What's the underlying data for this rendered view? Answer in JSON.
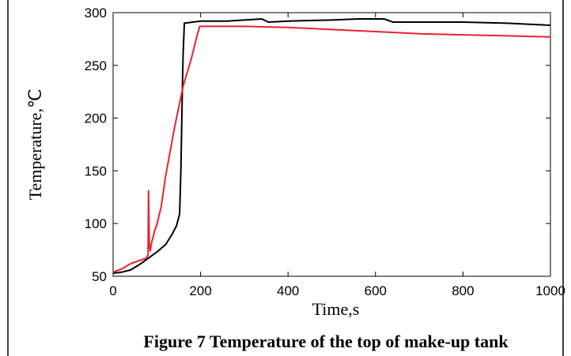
{
  "chart_data": {
    "type": "line",
    "xlabel": "Time,s",
    "ylabel": "Temperature,℃",
    "caption": "Figure 7 Temperature of the top of make-up tank",
    "xlim": [
      0,
      1000
    ],
    "ylim": [
      50,
      300
    ],
    "x_ticks": [
      0,
      200,
      400,
      600,
      800,
      1000
    ],
    "y_ticks": [
      50,
      100,
      150,
      200,
      250,
      300
    ],
    "x_tick_labels": [
      "0",
      "200",
      "400",
      "600",
      "800",
      "1000"
    ],
    "y_tick_labels": [
      "50",
      "100",
      "150",
      "200",
      "250",
      "300"
    ],
    "grid": false,
    "legend": "none",
    "series": [
      {
        "color": "#000000",
        "points": [
          [
            0,
            53
          ],
          [
            20,
            54
          ],
          [
            40,
            56
          ],
          [
            60,
            61
          ],
          [
            80,
            67
          ],
          [
            100,
            73
          ],
          [
            120,
            80
          ],
          [
            135,
            90
          ],
          [
            145,
            98
          ],
          [
            152,
            109
          ],
          [
            155,
            150
          ],
          [
            158,
            220
          ],
          [
            160,
            260
          ],
          [
            163,
            290
          ],
          [
            200,
            292
          ],
          [
            260,
            292
          ],
          [
            300,
            293
          ],
          [
            340,
            294
          ],
          [
            355,
            291
          ],
          [
            400,
            292
          ],
          [
            500,
            293
          ],
          [
            560,
            294
          ],
          [
            620,
            294
          ],
          [
            640,
            291
          ],
          [
            700,
            291
          ],
          [
            800,
            291
          ],
          [
            900,
            290
          ],
          [
            1000,
            288
          ]
        ]
      },
      {
        "color": "#e8232d",
        "points": [
          [
            0,
            54
          ],
          [
            20,
            57
          ],
          [
            40,
            62
          ],
          [
            60,
            65
          ],
          [
            75,
            67
          ],
          [
            80,
            70
          ],
          [
            81,
            131
          ],
          [
            83,
            78
          ],
          [
            85,
            74
          ],
          [
            88,
            82
          ],
          [
            92,
            88
          ],
          [
            95,
            93
          ],
          [
            100,
            99
          ],
          [
            110,
            116
          ],
          [
            120,
            145
          ],
          [
            140,
            190
          ],
          [
            160,
            230
          ],
          [
            180,
            258
          ],
          [
            190,
            275
          ],
          [
            198,
            287
          ],
          [
            300,
            287
          ],
          [
            400,
            286
          ],
          [
            500,
            284
          ],
          [
            600,
            282
          ],
          [
            700,
            280
          ],
          [
            800,
            279
          ],
          [
            900,
            278
          ],
          [
            1000,
            277
          ]
        ]
      }
    ]
  }
}
